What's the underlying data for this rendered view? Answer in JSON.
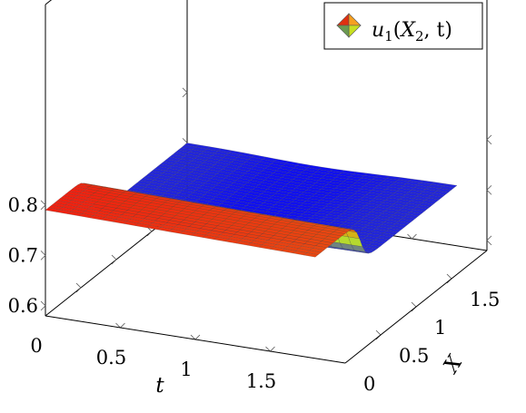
{
  "chart_data": {
    "type": "surface",
    "title": "",
    "legend": {
      "entries": [
        {
          "math": {
            "base": "u",
            "sub": "1",
            "open": "(",
            "var": "X",
            "var_sub": "2",
            "rest": ", t)"
          },
          "colors": [
            "#e03010",
            "#f6a020",
            "#c8e020",
            "#6a9a50"
          ]
        }
      ],
      "placement": "top-right"
    },
    "axes": {
      "t": {
        "label": "t",
        "range": [
          0,
          2
        ],
        "ticks": [
          "0",
          "0.5",
          "1",
          "1.5"
        ]
      },
      "X": {
        "label": "X",
        "range": [
          0,
          2
        ],
        "ticks": [
          "0",
          "0.5",
          "1",
          "1.5"
        ]
      },
      "z": {
        "label": "",
        "range": [
          0.55,
          0.85
        ],
        "ticks": [
          "0.6",
          "0.7",
          "0.8"
        ]
      }
    },
    "grid": false,
    "colormap": [
      "#1010f0",
      "#c8f018",
      "#f02010"
    ],
    "surface": {
      "t": [
        0,
        0.1,
        0.2,
        0.3,
        0.4,
        0.5,
        0.6,
        0.7,
        0.8,
        0.9,
        1.0,
        1.1,
        1.2,
        1.3,
        1.4,
        1.5,
        1.6,
        1.7,
        1.8
      ],
      "X": [
        0,
        0.1,
        0.2,
        0.3,
        0.4,
        0.5,
        0.6,
        0.7,
        0.8,
        0.9,
        1.0,
        1.1,
        1.2,
        1.3,
        1.4,
        1.5,
        1.6,
        1.7,
        1.8,
        1.9,
        2.0
      ],
      "X_step_center": 0.64,
      "X_step_width": 0.04,
      "u_high_start": 0.79,
      "u_high_decay_per_t": 0.005,
      "u_low": 0.7,
      "u_low_dip_center_t": 0.9,
      "u_low_dip_depth": 0.006
    }
  }
}
